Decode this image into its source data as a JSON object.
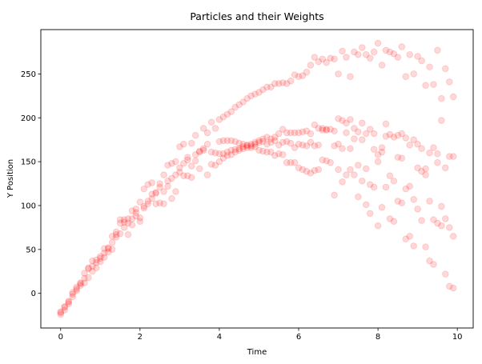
{
  "chart_data": {
    "type": "scatter",
    "title": "Particles and their Weights",
    "xlabel": "Time",
    "ylabel": "Y Position",
    "xlim": [
      -0.5,
      10.4
    ],
    "ylim": [
      -39.5,
      300.5
    ],
    "xticks": [
      0,
      2,
      4,
      6,
      8,
      10
    ],
    "yticks": [
      0,
      50,
      100,
      150,
      200,
      250
    ],
    "grid": false,
    "marker_color": "#ff0000",
    "marker_alpha": 0.15,
    "points": [
      [
        0,
        -24
      ],
      [
        0,
        -22
      ],
      [
        0,
        -21
      ],
      [
        0.1,
        -19
      ],
      [
        0.1,
        -16
      ],
      [
        0.1,
        -15
      ],
      [
        0.2,
        -12
      ],
      [
        0.2,
        -10
      ],
      [
        0.2,
        -9
      ],
      [
        0.3,
        -4
      ],
      [
        0.3,
        -1
      ],
      [
        0.3,
        1
      ],
      [
        0.4,
        3
      ],
      [
        0.4,
        5
      ],
      [
        0.4,
        7
      ],
      [
        0.5,
        9
      ],
      [
        0.5,
        11
      ],
      [
        0.5,
        12
      ],
      [
        0.6,
        12
      ],
      [
        0.6,
        17
      ],
      [
        0.6,
        23
      ],
      [
        0.7,
        18
      ],
      [
        0.7,
        28
      ],
      [
        0.7,
        29
      ],
      [
        0.8,
        25
      ],
      [
        0.8,
        31
      ],
      [
        0.8,
        37
      ],
      [
        0.9,
        29
      ],
      [
        0.9,
        35
      ],
      [
        0.9,
        38
      ],
      [
        1,
        36
      ],
      [
        1,
        40
      ],
      [
        1,
        42
      ],
      [
        1.1,
        41
      ],
      [
        1.1,
        46
      ],
      [
        1.1,
        51
      ],
      [
        1.2,
        47
      ],
      [
        1.2,
        51
      ],
      [
        1.2,
        52
      ],
      [
        1.3,
        50
      ],
      [
        1.3,
        58
      ],
      [
        1.3,
        65
      ],
      [
        1.4,
        64
      ],
      [
        1.4,
        67
      ],
      [
        1.4,
        70
      ],
      [
        1.5,
        68
      ],
      [
        1.5,
        80
      ],
      [
        1.5,
        84
      ],
      [
        1.6,
        75
      ],
      [
        1.6,
        81
      ],
      [
        1.6,
        84
      ],
      [
        1.7,
        67
      ],
      [
        1.7,
        80
      ],
      [
        1.7,
        85
      ],
      [
        1.8,
        78
      ],
      [
        1.8,
        85
      ],
      [
        1.8,
        94
      ],
      [
        1.9,
        88
      ],
      [
        1.9,
        92
      ],
      [
        1.9,
        96
      ],
      [
        2,
        82
      ],
      [
        2,
        86
      ],
      [
        2,
        104
      ],
      [
        2.1,
        97
      ],
      [
        2.1,
        99
      ],
      [
        2.1,
        119
      ],
      [
        2.2,
        102
      ],
      [
        2.2,
        105
      ],
      [
        2.2,
        124
      ],
      [
        2.3,
        108
      ],
      [
        2.3,
        113
      ],
      [
        2.3,
        126
      ],
      [
        2.4,
        102
      ],
      [
        2.4,
        114
      ],
      [
        2.4,
        115
      ],
      [
        2.5,
        103
      ],
      [
        2.5,
        121
      ],
      [
        2.5,
        125
      ],
      [
        2.6,
        102
      ],
      [
        2.6,
        116
      ],
      [
        2.6,
        135
      ],
      [
        2.7,
        122
      ],
      [
        2.7,
        128
      ],
      [
        2.7,
        146
      ],
      [
        2.8,
        108
      ],
      [
        2.8,
        131
      ],
      [
        2.8,
        148
      ],
      [
        2.9,
        116
      ],
      [
        2.9,
        135
      ],
      [
        2.9,
        150
      ],
      [
        3,
        138
      ],
      [
        3,
        143
      ],
      [
        3,
        167
      ],
      [
        3.1,
        134
      ],
      [
        3.1,
        148
      ],
      [
        3.1,
        170
      ],
      [
        3.2,
        134
      ],
      [
        3.2,
        152
      ],
      [
        3.2,
        155
      ],
      [
        3.3,
        132
      ],
      [
        3.3,
        145
      ],
      [
        3.3,
        171
      ],
      [
        3.4,
        151
      ],
      [
        3.4,
        158
      ],
      [
        3.4,
        180
      ],
      [
        3.5,
        142
      ],
      [
        3.5,
        161
      ],
      [
        3.5,
        162
      ],
      [
        3.6,
        163
      ],
      [
        3.6,
        165
      ],
      [
        3.6,
        188
      ],
      [
        3.7,
        135
      ],
      [
        3.7,
        170
      ],
      [
        3.7,
        183
      ],
      [
        3.8,
        147
      ],
      [
        3.8,
        161
      ],
      [
        3.8,
        195
      ],
      [
        3.9,
        146
      ],
      [
        3.9,
        160
      ],
      [
        3.9,
        188
      ],
      [
        4,
        150
      ],
      [
        4,
        159
      ],
      [
        4,
        173
      ],
      [
        4,
        198
      ],
      [
        4.1,
        154
      ],
      [
        4.1,
        159
      ],
      [
        4.1,
        174
      ],
      [
        4.1,
        201
      ],
      [
        4.2,
        157
      ],
      [
        4.2,
        161
      ],
      [
        4.2,
        174
      ],
      [
        4.2,
        204
      ],
      [
        4.3,
        158
      ],
      [
        4.3,
        163
      ],
      [
        4.3,
        174
      ],
      [
        4.3,
        207
      ],
      [
        4.4,
        161
      ],
      [
        4.4,
        164
      ],
      [
        4.4,
        173
      ],
      [
        4.4,
        212
      ],
      [
        4.5,
        163
      ],
      [
        4.5,
        165
      ],
      [
        4.5,
        171
      ],
      [
        4.5,
        215
      ],
      [
        4.6,
        165
      ],
      [
        4.6,
        167
      ],
      [
        4.6,
        170
      ],
      [
        4.6,
        218
      ],
      [
        4.7,
        166
      ],
      [
        4.7,
        169
      ],
      [
        4.7,
        168
      ],
      [
        4.7,
        222
      ],
      [
        4.8,
        166
      ],
      [
        4.8,
        168
      ],
      [
        4.8,
        170
      ],
      [
        4.8,
        225
      ],
      [
        4.9,
        167
      ],
      [
        4.9,
        170
      ],
      [
        4.9,
        172
      ],
      [
        4.9,
        227
      ],
      [
        5,
        163
      ],
      [
        5,
        172
      ],
      [
        5,
        174
      ],
      [
        5,
        229
      ],
      [
        5.1,
        162
      ],
      [
        5.1,
        173
      ],
      [
        5.1,
        176
      ],
      [
        5.1,
        232
      ],
      [
        5.2,
        161
      ],
      [
        5.2,
        170
      ],
      [
        5.2,
        178
      ],
      [
        5.2,
        235
      ],
      [
        5.3,
        161
      ],
      [
        5.3,
        172
      ],
      [
        5.3,
        176
      ],
      [
        5.3,
        235
      ],
      [
        5.4,
        157
      ],
      [
        5.4,
        174
      ],
      [
        5.4,
        178
      ],
      [
        5.4,
        239
      ],
      [
        5.5,
        159
      ],
      [
        5.5,
        169
      ],
      [
        5.5,
        182
      ],
      [
        5.5,
        239
      ],
      [
        5.6,
        158
      ],
      [
        5.6,
        172
      ],
      [
        5.6,
        187
      ],
      [
        5.6,
        240
      ],
      [
        5.7,
        149
      ],
      [
        5.7,
        173
      ],
      [
        5.7,
        183
      ],
      [
        5.7,
        239
      ],
      [
        5.8,
        149
      ],
      [
        5.8,
        171
      ],
      [
        5.8,
        183
      ],
      [
        5.8,
        242
      ],
      [
        5.9,
        149
      ],
      [
        5.9,
        166
      ],
      [
        5.9,
        183
      ],
      [
        5.9,
        249
      ],
      [
        6,
        143
      ],
      [
        6,
        170
      ],
      [
        6,
        183
      ],
      [
        6,
        247
      ],
      [
        6.1,
        141
      ],
      [
        6.1,
        169
      ],
      [
        6.1,
        184
      ],
      [
        6.1,
        248
      ],
      [
        6.2,
        139
      ],
      [
        6.2,
        168
      ],
      [
        6.2,
        185
      ],
      [
        6.2,
        252
      ],
      [
        6.3,
        137
      ],
      [
        6.3,
        172
      ],
      [
        6.3,
        182
      ],
      [
        6.3,
        260
      ],
      [
        6.4,
        140
      ],
      [
        6.4,
        168
      ],
      [
        6.4,
        192
      ],
      [
        6.4,
        269
      ],
      [
        6.5,
        141
      ],
      [
        6.5,
        169
      ],
      [
        6.5,
        188
      ],
      [
        6.5,
        264
      ],
      [
        6.6,
        152
      ],
      [
        6.6,
        186
      ],
      [
        6.6,
        188
      ],
      [
        6.6,
        267
      ],
      [
        6.7,
        151
      ],
      [
        6.7,
        186
      ],
      [
        6.7,
        187
      ],
      [
        6.7,
        263
      ],
      [
        6.8,
        149
      ],
      [
        6.8,
        187
      ],
      [
        6.8,
        268
      ],
      [
        6.9,
        112
      ],
      [
        6.9,
        168
      ],
      [
        6.9,
        185
      ],
      [
        6.9,
        267
      ],
      [
        7,
        141
      ],
      [
        7,
        170
      ],
      [
        7,
        199
      ],
      [
        7,
        250
      ],
      [
        7.1,
        127
      ],
      [
        7.1,
        165
      ],
      [
        7.1,
        197
      ],
      [
        7.1,
        276
      ],
      [
        7.2,
        135
      ],
      [
        7.2,
        183
      ],
      [
        7.2,
        194
      ],
      [
        7.2,
        269
      ],
      [
        7.3,
        141
      ],
      [
        7.3,
        165
      ],
      [
        7.3,
        198
      ],
      [
        7.3,
        247
      ],
      [
        7.4,
        135
      ],
      [
        7.4,
        176
      ],
      [
        7.4,
        188
      ],
      [
        7.4,
        275
      ],
      [
        7.5,
        110
      ],
      [
        7.5,
        146
      ],
      [
        7.5,
        184
      ],
      [
        7.5,
        272
      ],
      [
        7.6,
        128
      ],
      [
        7.6,
        175
      ],
      [
        7.6,
        194
      ],
      [
        7.6,
        280
      ],
      [
        7.7,
        101
      ],
      [
        7.7,
        142
      ],
      [
        7.7,
        182
      ],
      [
        7.7,
        272
      ],
      [
        7.8,
        91
      ],
      [
        7.8,
        124
      ],
      [
        7.8,
        187
      ],
      [
        7.8,
        268
      ],
      [
        7.9,
        121
      ],
      [
        7.9,
        164
      ],
      [
        7.9,
        182
      ],
      [
        7.9,
        275
      ],
      [
        8,
        77
      ],
      [
        8,
        150
      ],
      [
        8,
        158
      ],
      [
        8,
        285
      ],
      [
        8.1,
        98
      ],
      [
        8.1,
        161
      ],
      [
        8.1,
        166
      ],
      [
        8.1,
        260
      ],
      [
        8.2,
        121
      ],
      [
        8.2,
        179
      ],
      [
        8.2,
        193
      ],
      [
        8.2,
        277
      ],
      [
        8.3,
        85
      ],
      [
        8.3,
        134
      ],
      [
        8.3,
        181
      ],
      [
        8.3,
        275
      ],
      [
        8.4,
        82
      ],
      [
        8.4,
        128
      ],
      [
        8.4,
        178
      ],
      [
        8.4,
        273
      ],
      [
        8.5,
        105
      ],
      [
        8.5,
        155
      ],
      [
        8.5,
        180
      ],
      [
        8.5,
        269
      ],
      [
        8.6,
        103
      ],
      [
        8.6,
        154
      ],
      [
        8.6,
        182
      ],
      [
        8.6,
        281
      ],
      [
        8.7,
        62
      ],
      [
        8.7,
        119
      ],
      [
        8.7,
        177
      ],
      [
        8.7,
        247
      ],
      [
        8.8,
        65
      ],
      [
        8.8,
        122
      ],
      [
        8.8,
        169
      ],
      [
        8.8,
        272
      ],
      [
        8.9,
        54
      ],
      [
        8.9,
        107
      ],
      [
        8.9,
        175
      ],
      [
        8.9,
        250
      ],
      [
        9,
        96
      ],
      [
        9,
        143
      ],
      [
        9,
        170
      ],
      [
        9,
        270
      ],
      [
        9.1,
        83
      ],
      [
        9.1,
        139
      ],
      [
        9.1,
        165
      ],
      [
        9.1,
        265
      ],
      [
        9.2,
        53
      ],
      [
        9.2,
        135
      ],
      [
        9.2,
        142
      ],
      [
        9.2,
        237
      ],
      [
        9.3,
        37
      ],
      [
        9.3,
        105
      ],
      [
        9.3,
        160
      ],
      [
        9.3,
        258
      ],
      [
        9.4,
        33
      ],
      [
        9.4,
        84
      ],
      [
        9.4,
        166
      ],
      [
        9.4,
        238
      ],
      [
        9.5,
        80
      ],
      [
        9.5,
        149
      ],
      [
        9.5,
        159
      ],
      [
        9.5,
        277
      ],
      [
        9.6,
        77
      ],
      [
        9.6,
        99
      ],
      [
        9.6,
        197
      ],
      [
        9.6,
        222
      ],
      [
        9.7,
        22
      ],
      [
        9.7,
        85
      ],
      [
        9.7,
        143
      ],
      [
        9.7,
        256
      ],
      [
        9.8,
        8
      ],
      [
        9.8,
        75
      ],
      [
        9.8,
        156
      ],
      [
        9.8,
        241
      ],
      [
        9.9,
        6
      ],
      [
        9.9,
        65
      ],
      [
        9.9,
        156
      ],
      [
        9.9,
        224
      ]
    ]
  }
}
